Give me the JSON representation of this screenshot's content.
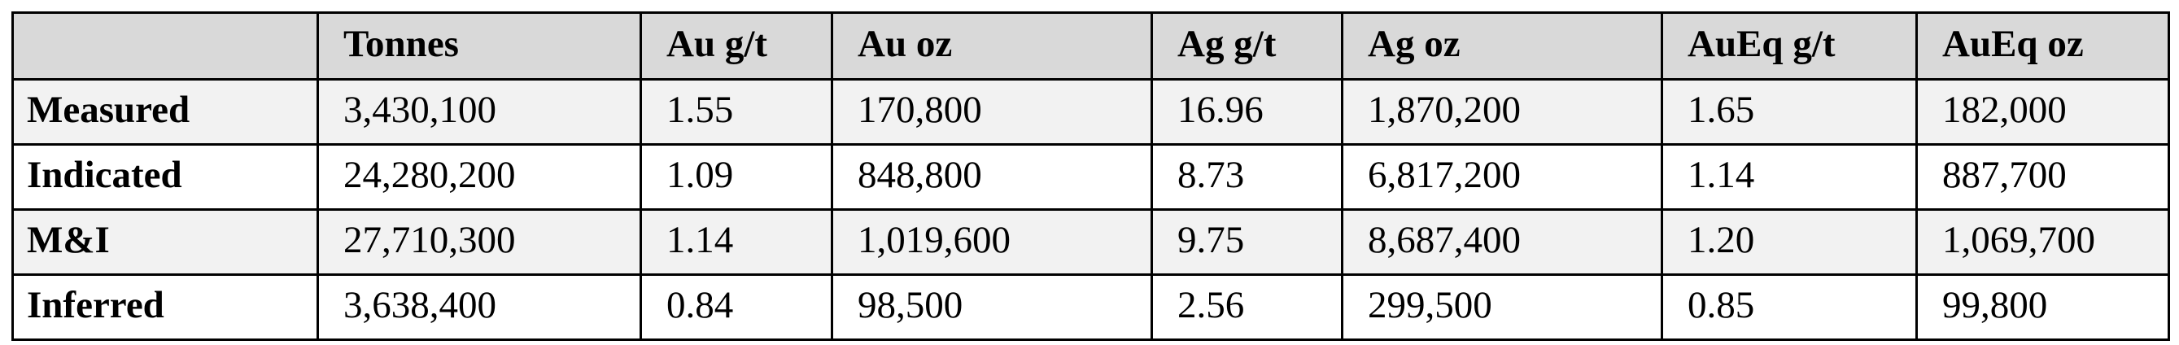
{
  "table": {
    "header": [
      "Tonnes",
      "Au g/t",
      "Au oz",
      "Ag g/t",
      "Ag oz",
      "AuEq g/t",
      "AuEq oz"
    ],
    "rows": [
      {
        "label": "Measured",
        "cells": [
          "3,430,100",
          "1.55",
          "170,800",
          "16.96",
          "1,870,200",
          "1.65",
          "182,000"
        ]
      },
      {
        "label": "Indicated",
        "cells": [
          "24,280,200",
          "1.09",
          "848,800",
          "8.73",
          "6,817,200",
          "1.14",
          "887,700"
        ]
      },
      {
        "label": "M&I",
        "cells": [
          "27,710,300",
          "1.14",
          "1,019,600",
          "9.75",
          "8,687,400",
          "1.20",
          "1,069,700"
        ]
      },
      {
        "label": "Inferred",
        "cells": [
          "3,638,400",
          "0.84",
          "98,500",
          "2.56",
          "299,500",
          "0.85",
          "99,800"
        ]
      }
    ]
  }
}
